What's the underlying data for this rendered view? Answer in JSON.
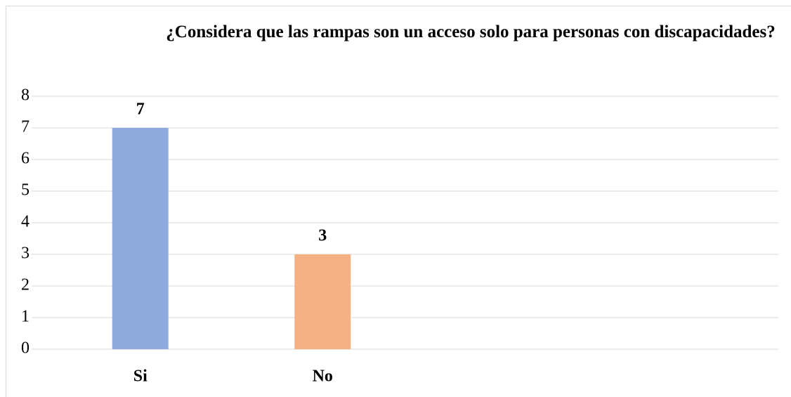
{
  "chart_data": {
    "type": "bar",
    "title": "¿Considera que las rampas son un acceso solo para personas con discapacidades?",
    "categories": [
      "Si",
      "No"
    ],
    "values": [
      7,
      3
    ],
    "colors": [
      "#8faadc",
      "#f4b183"
    ],
    "ylim": [
      0,
      8
    ],
    "yticks": [
      0,
      1,
      2,
      3,
      4,
      5,
      6,
      7,
      8
    ],
    "grid": true
  }
}
